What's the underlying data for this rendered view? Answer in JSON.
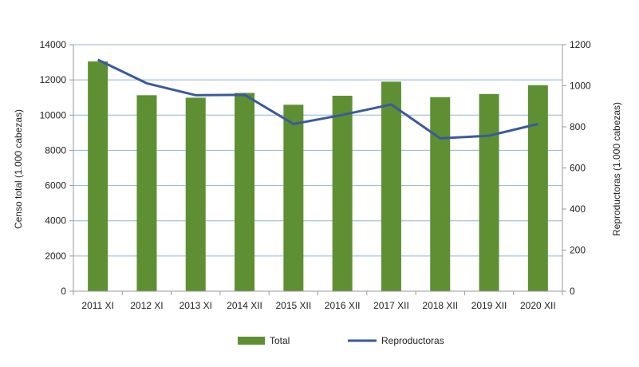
{
  "chart_data": {
    "type": "bar+line",
    "categories": [
      "2011 XI",
      "2012 XI",
      "2013 XI",
      "2014 XII",
      "2015 XII",
      "2016 XII",
      "2017 XII",
      "2018 XII",
      "2019 XII",
      "2020 XII"
    ],
    "series": [
      {
        "name": "Total",
        "type": "bar",
        "axis": "left",
        "color": "#5e8f32",
        "values": [
          13050,
          11130,
          10990,
          11260,
          10590,
          11100,
          11900,
          11020,
          11200,
          11700
        ]
      },
      {
        "name": "Reproductoras",
        "type": "line",
        "axis": "right",
        "color": "#3b5a9a",
        "values": [
          1127,
          1012,
          954,
          956,
          814,
          858,
          909,
          744,
          757,
          814
        ]
      }
    ],
    "ylabel": "Censo total (1.000 cabezas)",
    "y2label": "Reproductoras (1.000 cabezas)",
    "ylim": [
      0,
      14000
    ],
    "y2lim": [
      0,
      1200
    ],
    "yticks": [
      0,
      2000,
      4000,
      6000,
      8000,
      10000,
      12000,
      14000
    ],
    "y2ticks": [
      0,
      200,
      400,
      600,
      800,
      1000,
      1200
    ],
    "grid": true,
    "legend": "bottom",
    "gridColor": "#8fb4d6"
  }
}
